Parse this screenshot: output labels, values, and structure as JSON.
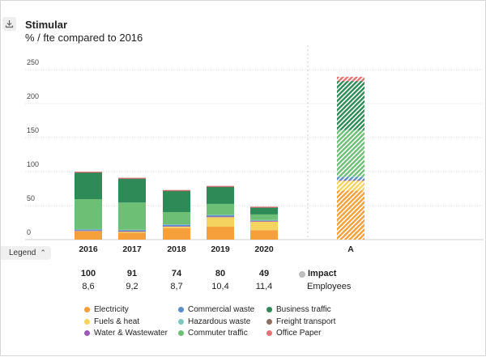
{
  "header": {
    "title": "Stimular",
    "subtitle": "% / fte compared to 2016"
  },
  "icons": {
    "download": "download-icon",
    "legend_toggle": "chevron-up-icon"
  },
  "legend_toggle_label": "Legend",
  "stats": {
    "impact_label": "Impact",
    "employees_label": "Employees",
    "impact": [
      "100",
      "91",
      "74",
      "80",
      "49"
    ],
    "employees": [
      "8,6",
      "9,2",
      "8,7",
      "10,4",
      "11,4"
    ]
  },
  "colors": {
    "Electricity": "#f5a03a",
    "Fuels & heat": "#f4d35e",
    "Water & Wastewater": "#9b59b6",
    "Commercial waste": "#5b8dc6",
    "Hazardous waste": "#7fc6c0",
    "Commuter traffic": "#6dbf76",
    "Business traffic": "#2e8b57",
    "Freight transport": "#8d6e63",
    "Office Paper": "#e57373"
  },
  "legend": {
    "col1": [
      "Electricity",
      "Fuels & heat",
      "Water & Wastewater"
    ],
    "col2": [
      "Commercial waste",
      "Hazardous waste",
      "Commuter traffic"
    ],
    "col3": [
      "Business traffic",
      "Freight transport",
      "Office Paper"
    ]
  },
  "chart_data": {
    "type": "bar",
    "stacked": true,
    "categories": [
      "2016",
      "2017",
      "2018",
      "2019",
      "2020",
      "A"
    ],
    "ylim": [
      0,
      260
    ],
    "yticks": [
      0,
      50,
      100,
      150,
      200,
      250
    ],
    "grid": true,
    "series": [
      {
        "name": "Electricity",
        "values": [
          12,
          10,
          17,
          19,
          14,
          72
        ]
      },
      {
        "name": "Fuels & heat",
        "values": [
          1,
          2,
          2,
          14,
          13,
          15
        ]
      },
      {
        "name": "Water & Wastewater",
        "values": [
          0.5,
          0.5,
          1,
          1,
          0.5,
          0.5
        ]
      },
      {
        "name": "Commercial waste",
        "values": [
          1.5,
          1.5,
          2,
          2,
          1,
          5
        ]
      },
      {
        "name": "Hazardous waste",
        "values": [
          0.5,
          0.5,
          0.5,
          0.5,
          0.5,
          0.5
        ]
      },
      {
        "name": "Commuter traffic",
        "values": [
          44,
          40,
          18,
          16,
          8,
          68
        ]
      },
      {
        "name": "Business traffic",
        "values": [
          39,
          35,
          31,
          25,
          10,
          72
        ]
      },
      {
        "name": "Freight transport",
        "values": [
          0.5,
          0.5,
          0.5,
          0.5,
          0.5,
          0.5
        ]
      },
      {
        "name": "Office Paper",
        "values": [
          1,
          1,
          1,
          1,
          1,
          6
        ]
      }
    ]
  }
}
